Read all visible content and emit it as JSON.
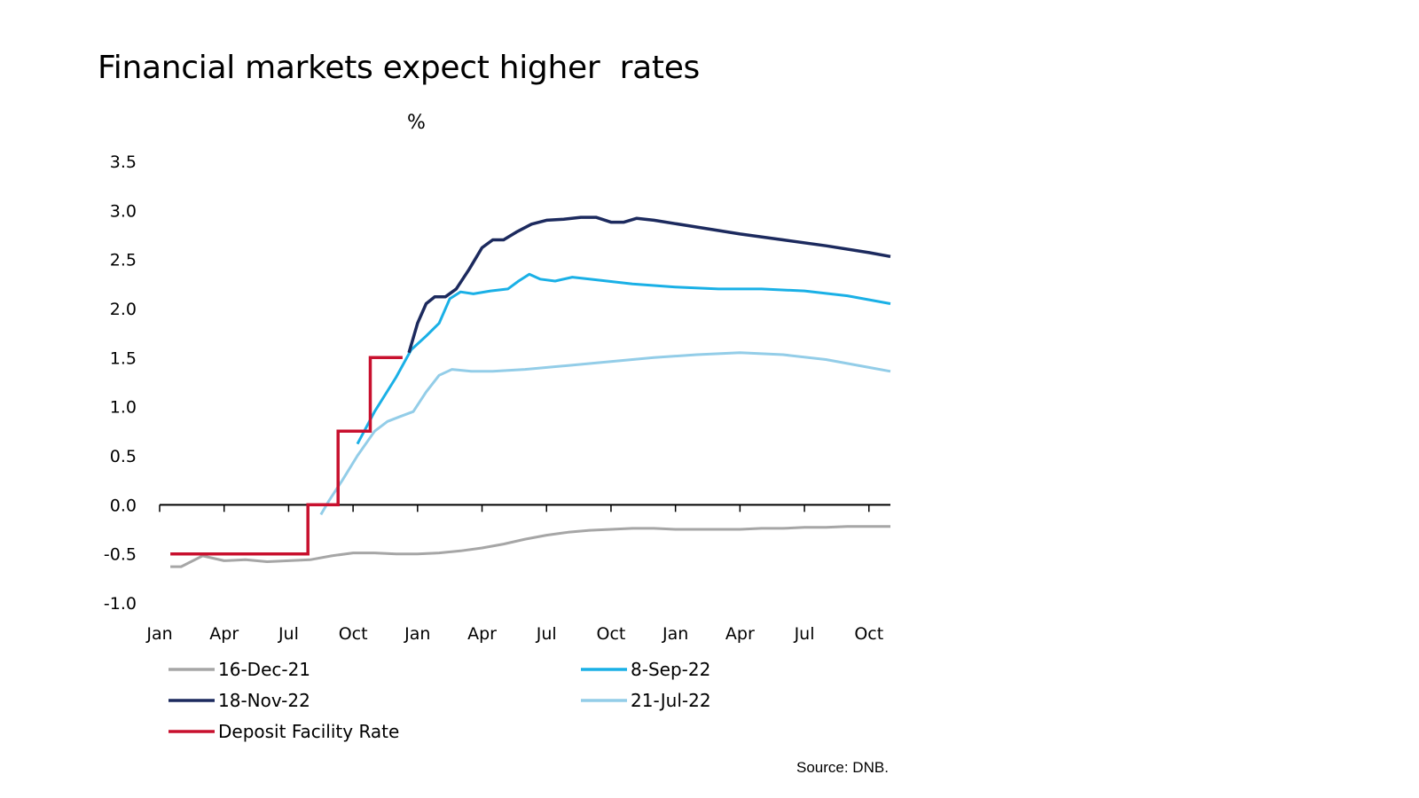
{
  "header": {
    "title": "Financial markets expect higher  rates"
  },
  "chart_data": {
    "type": "line",
    "title": "Financial markets expect higher  rates",
    "ylabel": "%",
    "ylim": [
      -1.0,
      3.5
    ],
    "y_ticks": [
      "3.5",
      "3.0",
      "2.5",
      "2.0",
      "1.5",
      "1.0",
      "0.5",
      "0.0",
      "-0.5",
      "-1.0"
    ],
    "y_tick_values": [
      3.5,
      3.0,
      2.5,
      2.0,
      1.5,
      1.0,
      0.5,
      0.0,
      -0.5,
      -1.0
    ],
    "x_unit": "months since Jan 2022",
    "xlim": [
      0,
      34
    ],
    "x_ticks": [
      "Jan",
      "Apr",
      "Jul",
      "Oct",
      "Jan",
      "Apr",
      "Jul",
      "Oct",
      "Jan",
      "Apr",
      "Jul",
      "Oct"
    ],
    "x_tick_values": [
      0,
      3,
      6,
      9,
      12,
      15,
      18,
      21,
      24,
      27,
      30,
      33
    ],
    "grid": false,
    "series": [
      {
        "name": "16-Dec-21",
        "color": "#a6a6a6",
        "points": [
          [
            0.5,
            -0.63
          ],
          [
            1,
            -0.63
          ],
          [
            2,
            -0.52
          ],
          [
            3,
            -0.57
          ],
          [
            4,
            -0.56
          ],
          [
            5,
            -0.58
          ],
          [
            6,
            -0.57
          ],
          [
            7,
            -0.56
          ],
          [
            8,
            -0.52
          ],
          [
            9,
            -0.49
          ],
          [
            10,
            -0.49
          ],
          [
            11,
            -0.5
          ],
          [
            12,
            -0.5
          ],
          [
            13,
            -0.49
          ],
          [
            14,
            -0.47
          ],
          [
            15,
            -0.44
          ],
          [
            16,
            -0.4
          ],
          [
            17,
            -0.35
          ],
          [
            18,
            -0.31
          ],
          [
            19,
            -0.28
          ],
          [
            20,
            -0.26
          ],
          [
            21,
            -0.25
          ],
          [
            22,
            -0.24
          ],
          [
            23,
            -0.24
          ],
          [
            24,
            -0.25
          ],
          [
            25,
            -0.25
          ],
          [
            26,
            -0.25
          ],
          [
            27,
            -0.25
          ],
          [
            28,
            -0.24
          ],
          [
            29,
            -0.24
          ],
          [
            30,
            -0.23
          ],
          [
            31,
            -0.23
          ],
          [
            32,
            -0.22
          ],
          [
            33,
            -0.22
          ],
          [
            34,
            -0.22
          ]
        ]
      },
      {
        "name": "8-Sep-22",
        "color": "#1ab0e6",
        "points": [
          [
            9.2,
            0.62
          ],
          [
            10,
            0.95
          ],
          [
            11,
            1.3
          ],
          [
            11.7,
            1.58
          ],
          [
            12.4,
            1.72
          ],
          [
            13,
            1.85
          ],
          [
            13.5,
            2.1
          ],
          [
            14,
            2.17
          ],
          [
            14.6,
            2.15
          ],
          [
            15.4,
            2.18
          ],
          [
            16.2,
            2.2
          ],
          [
            16.7,
            2.28
          ],
          [
            17.2,
            2.35
          ],
          [
            17.7,
            2.3
          ],
          [
            18.4,
            2.28
          ],
          [
            19.2,
            2.32
          ],
          [
            20,
            2.3
          ],
          [
            22,
            2.25
          ],
          [
            24,
            2.22
          ],
          [
            26,
            2.2
          ],
          [
            28,
            2.2
          ],
          [
            30,
            2.18
          ],
          [
            32,
            2.13
          ],
          [
            34,
            2.05
          ]
        ]
      },
      {
        "name": "18-Nov-22",
        "color": "#1c2a5e",
        "points": [
          [
            11.6,
            1.55
          ],
          [
            12,
            1.85
          ],
          [
            12.4,
            2.05
          ],
          [
            12.8,
            2.12
          ],
          [
            13.3,
            2.12
          ],
          [
            13.8,
            2.2
          ],
          [
            14.4,
            2.4
          ],
          [
            15,
            2.62
          ],
          [
            15.5,
            2.7
          ],
          [
            16,
            2.7
          ],
          [
            16.6,
            2.78
          ],
          [
            17.3,
            2.86
          ],
          [
            18,
            2.9
          ],
          [
            18.8,
            2.91
          ],
          [
            19.6,
            2.93
          ],
          [
            20.3,
            2.93
          ],
          [
            21,
            2.88
          ],
          [
            21.6,
            2.88
          ],
          [
            22.2,
            2.92
          ],
          [
            23,
            2.9
          ],
          [
            25,
            2.83
          ],
          [
            27,
            2.76
          ],
          [
            29,
            2.7
          ],
          [
            31,
            2.64
          ],
          [
            33,
            2.57
          ],
          [
            34,
            2.53
          ]
        ]
      },
      {
        "name": "21-Jul-22",
        "color": "#93cde8",
        "points": [
          [
            7.5,
            -0.1
          ],
          [
            7.9,
            0.05
          ],
          [
            8.5,
            0.25
          ],
          [
            9.2,
            0.5
          ],
          [
            10,
            0.75
          ],
          [
            10.6,
            0.85
          ],
          [
            11.2,
            0.9
          ],
          [
            11.8,
            0.95
          ],
          [
            12.4,
            1.15
          ],
          [
            13,
            1.32
          ],
          [
            13.6,
            1.38
          ],
          [
            14.5,
            1.36
          ],
          [
            15.5,
            1.36
          ],
          [
            17,
            1.38
          ],
          [
            19,
            1.42
          ],
          [
            21,
            1.46
          ],
          [
            23,
            1.5
          ],
          [
            25,
            1.53
          ],
          [
            27,
            1.55
          ],
          [
            29,
            1.53
          ],
          [
            31,
            1.48
          ],
          [
            33,
            1.4
          ],
          [
            34,
            1.36
          ]
        ]
      },
      {
        "name": "Deposit Facility Rate",
        "color": "#c8102e",
        "points": [
          [
            0.5,
            -0.5
          ],
          [
            6.9,
            -0.5
          ],
          [
            6.9,
            0
          ],
          [
            8.3,
            0
          ],
          [
            8.3,
            0.75
          ],
          [
            9.8,
            0.75
          ],
          [
            9.8,
            1.5
          ],
          [
            11.3,
            1.5
          ]
        ]
      }
    ],
    "legend": [
      {
        "label": "16-Dec-21",
        "color": "#a6a6a6"
      },
      {
        "label": "8-Sep-22",
        "color": "#1ab0e6"
      },
      {
        "label": "18-Nov-22",
        "color": "#1c2a5e"
      },
      {
        "label": "21-Jul-22",
        "color": "#93cde8"
      },
      {
        "label": "Deposit Facility Rate",
        "color": "#c8102e"
      }
    ]
  },
  "source": "Source: DNB."
}
